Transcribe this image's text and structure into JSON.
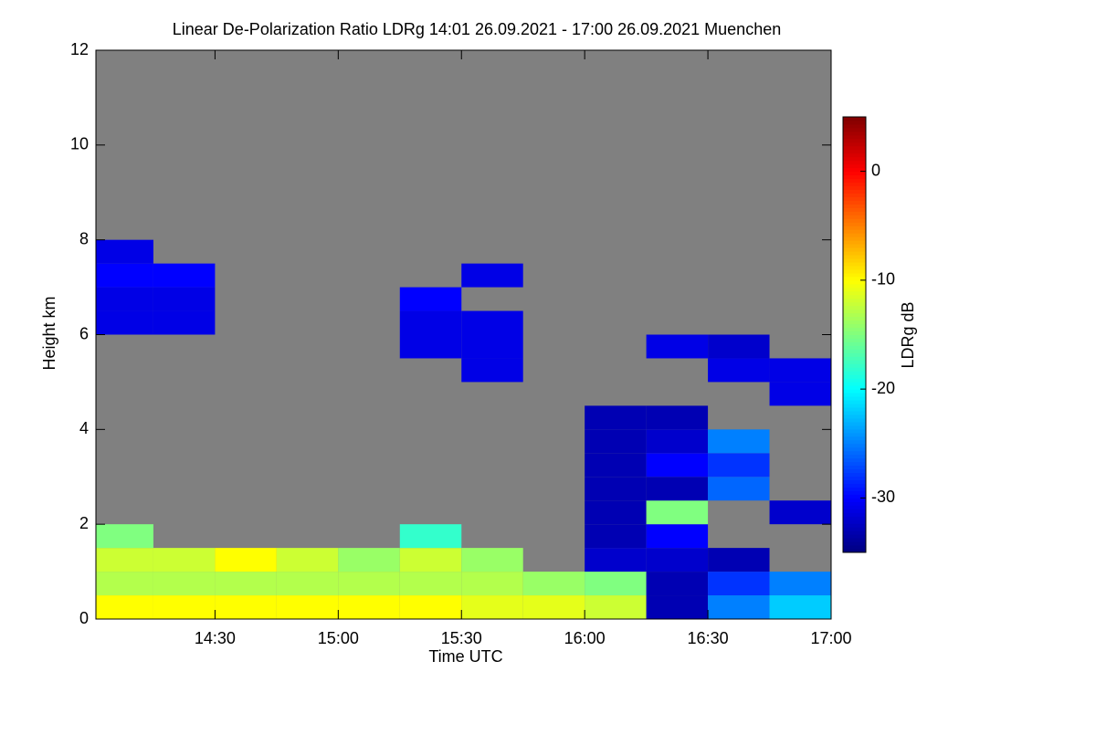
{
  "chart_data": {
    "type": "heatmap",
    "title": "Linear De-Polarization Ratio LDRg   14:01 26.09.2021 - 17:00 26.09.2021 Muenchen",
    "x_label": "Time UTC",
    "y_label": "Height km",
    "colorbar_label": "LDRg dB",
    "x_bins": [
      14.0167,
      14.25,
      14.5,
      14.75,
      15.0,
      15.25,
      15.5,
      15.75,
      16.0,
      16.25,
      16.5,
      16.75,
      17.0
    ],
    "y_bins": [
      0,
      0.5,
      1,
      1.5,
      2,
      2.5,
      3,
      3.5,
      4,
      4.5,
      5,
      5.5,
      6,
      6.5,
      7,
      7.5,
      8
    ],
    "values": [
      [
        -10,
        -10,
        -10,
        -10,
        -10,
        -10,
        -11,
        -11,
        -12,
        -33,
        -25,
        -22
      ],
      [
        -13,
        -13,
        -13,
        -13,
        -13,
        -13,
        -13,
        -14,
        -15,
        -33,
        -28,
        -25
      ],
      [
        -12,
        -12,
        -10,
        -12,
        -14,
        -12,
        -14,
        null,
        -32,
        -32,
        -33,
        null
      ],
      [
        -15,
        null,
        null,
        null,
        null,
        -18,
        null,
        null,
        -33,
        -30,
        null,
        null
      ],
      [
        null,
        null,
        null,
        null,
        null,
        null,
        null,
        null,
        -33,
        -15,
        null,
        -32
      ],
      [
        null,
        null,
        null,
        null,
        null,
        null,
        null,
        null,
        -33,
        -33,
        -26,
        null
      ],
      [
        null,
        null,
        null,
        null,
        null,
        null,
        null,
        null,
        -33,
        -30,
        -28,
        null
      ],
      [
        null,
        null,
        null,
        null,
        null,
        null,
        null,
        null,
        -33,
        -32,
        -25,
        null
      ],
      [
        null,
        null,
        null,
        null,
        null,
        null,
        null,
        null,
        -33,
        -33,
        null,
        null
      ],
      [
        null,
        null,
        null,
        null,
        null,
        null,
        null,
        null,
        null,
        null,
        null,
        -31
      ],
      [
        null,
        null,
        null,
        null,
        null,
        null,
        -31,
        null,
        null,
        null,
        -31,
        -31
      ],
      [
        null,
        null,
        null,
        null,
        null,
        -31,
        -31,
        null,
        null,
        -31,
        -32,
        null
      ],
      [
        -31,
        -31,
        null,
        null,
        null,
        -31,
        -31,
        null,
        null,
        null,
        null,
        null
      ],
      [
        -31,
        -31,
        null,
        null,
        null,
        -30,
        null,
        null,
        null,
        null,
        null,
        null
      ],
      [
        -30,
        -30,
        null,
        null,
        null,
        null,
        -31,
        null,
        null,
        null,
        null,
        null
      ],
      [
        -31,
        null,
        null,
        null,
        null,
        null,
        null,
        null,
        null,
        null,
        null,
        null
      ]
    ],
    "xlim": [
      14.0167,
      17.0
    ],
    "xticks": [
      {
        "value": 14.5,
        "label": "14:30"
      },
      {
        "value": 15.0,
        "label": "15:00"
      },
      {
        "value": 15.5,
        "label": "15:30"
      },
      {
        "value": 16.0,
        "label": "16:00"
      },
      {
        "value": 16.5,
        "label": "16:30"
      },
      {
        "value": 17.0,
        "label": "17:00"
      }
    ],
    "ylim": [
      0,
      12
    ],
    "yticks": [
      0,
      2,
      4,
      6,
      8,
      10,
      12
    ],
    "clim": [
      -35,
      5
    ],
    "cticks": [
      0,
      -10,
      -20,
      -30
    ],
    "colormap": "jet",
    "no_data_color": "#808080"
  }
}
